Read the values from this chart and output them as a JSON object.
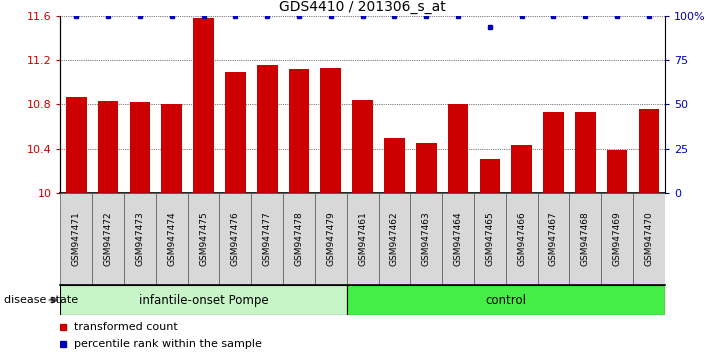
{
  "title": "GDS4410 / 201306_s_at",
  "samples": [
    "GSM947471",
    "GSM947472",
    "GSM947473",
    "GSM947474",
    "GSM947475",
    "GSM947476",
    "GSM947477",
    "GSM947478",
    "GSM947479",
    "GSM947461",
    "GSM947462",
    "GSM947463",
    "GSM947464",
    "GSM947465",
    "GSM947466",
    "GSM947467",
    "GSM947468",
    "GSM947469",
    "GSM947470"
  ],
  "bar_values": [
    10.87,
    10.83,
    10.82,
    10.8,
    11.58,
    11.09,
    11.16,
    11.12,
    11.13,
    10.84,
    10.5,
    10.45,
    10.8,
    10.31,
    10.43,
    10.73,
    10.73,
    10.39,
    10.76
  ],
  "percentile_values": [
    100,
    100,
    100,
    100,
    100,
    100,
    100,
    100,
    100,
    100,
    100,
    100,
    100,
    94,
    100,
    100,
    100,
    100,
    100
  ],
  "bar_color": "#cc0000",
  "dot_color": "#0000bb",
  "ylim_left": [
    10.0,
    11.6
  ],
  "ylim_right": [
    0,
    100
  ],
  "yticks_left": [
    10.0,
    10.4,
    10.8,
    11.2,
    11.6
  ],
  "yticks_right": [
    0,
    25,
    50,
    75,
    100
  ],
  "ytick_labels_left": [
    "10",
    "10.4",
    "10.8",
    "11.2",
    "11.6"
  ],
  "ytick_labels_right": [
    "0",
    "25",
    "50",
    "75",
    "100%"
  ],
  "groups": [
    {
      "label": "infantile-onset Pompe",
      "start": 0,
      "end": 9,
      "color": "#ccffcc"
    },
    {
      "label": "control",
      "start": 9,
      "end": 19,
      "color": "#44ee44"
    }
  ],
  "disease_state_label": "disease state",
  "legend_bar_label": "transformed count",
  "legend_dot_label": "percentile rank within the sample",
  "background_color": "#ffffff",
  "plot_bg_color": "#ffffff",
  "xticklabel_bg": "#d8d8d8"
}
